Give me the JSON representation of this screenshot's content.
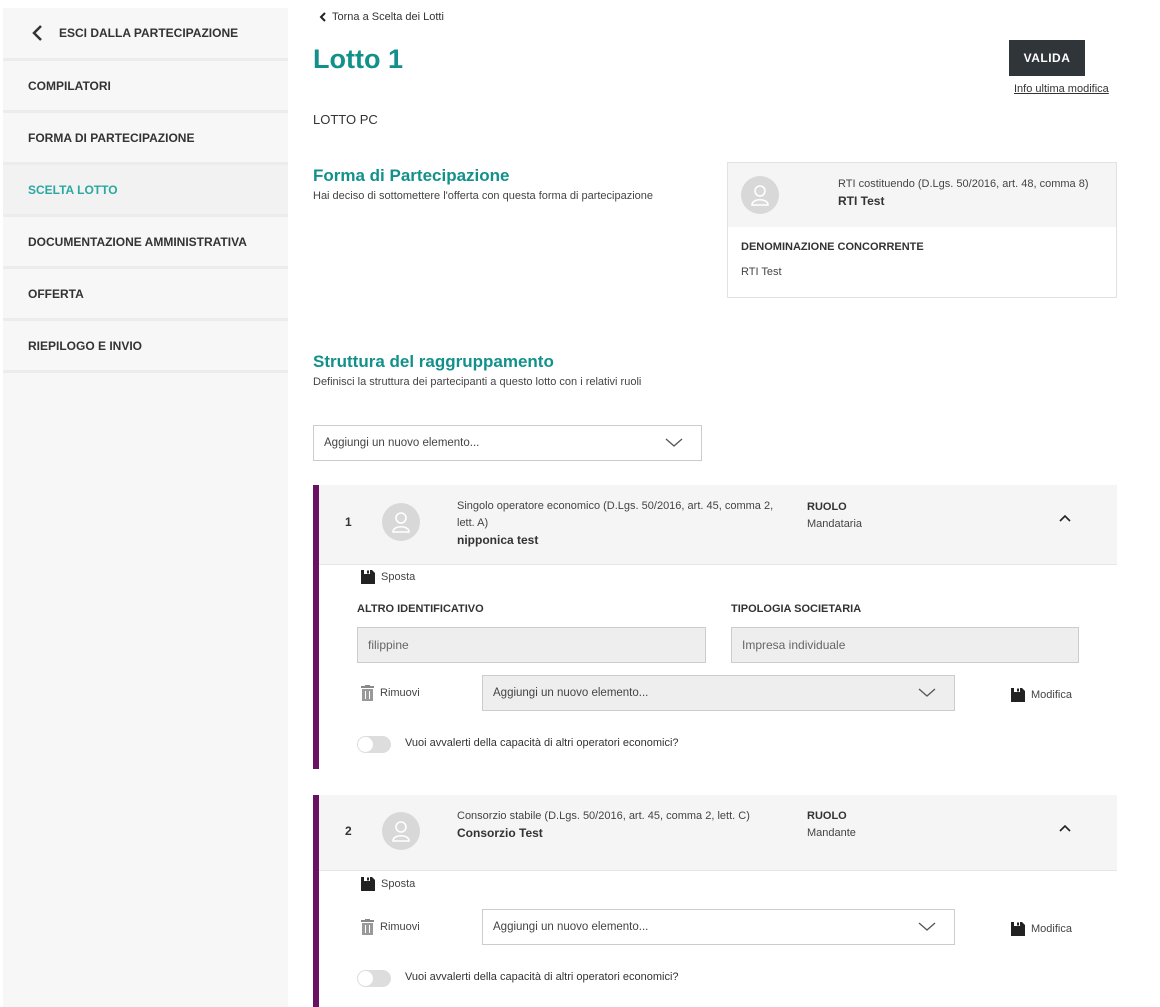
{
  "sidebar": {
    "back": "ESCI DALLA PARTECIPAZIONE",
    "items": [
      {
        "label": "COMPILATORI"
      },
      {
        "label": "FORMA DI PARTECIPAZIONE"
      },
      {
        "label": "SCELTA LOTTO",
        "active": true
      },
      {
        "label": "DOCUMENTAZIONE AMMINISTRATIVA"
      },
      {
        "label": "OFFERTA"
      },
      {
        "label": "RIEPILOGO E INVIO"
      }
    ]
  },
  "header": {
    "back_link": "Torna a Scelta dei Lotti",
    "title": "Lotto 1",
    "validate": "VALIDA",
    "info_link": "Info ultima modifica",
    "subtitle": "LOTTO PC"
  },
  "forma": {
    "title": "Forma di Partecipazione",
    "desc": "Hai deciso di sottomettere l'offerta con questa forma di partecipazione",
    "card": {
      "type": "RTI costituendo (D.Lgs. 50/2016, art. 48, comma 8)",
      "name": "RTI Test",
      "field_label": "DENOMINAZIONE CONCORRENTE",
      "field_value": "RTI Test"
    }
  },
  "struttura": {
    "title": "Struttura del raggruppamento",
    "desc": "Definisci la struttura dei partecipanti a questo lotto con i relativi ruoli",
    "add_placeholder": "Aggiungi un nuovo elemento..."
  },
  "members": [
    {
      "index": "1",
      "type": "Singolo operatore economico (D.Lgs. 50/2016, art. 45, comma 2, lett. A)",
      "name": "nipponica test",
      "role_label": "RUOLO",
      "role": "Mandataria",
      "move": "Sposta",
      "altro_label": "ALTRO IDENTIFICATIVO",
      "altro_value": "filippine",
      "tipologia_label": "TIPOLOGIA SOCIETARIA",
      "tipologia_value": "Impresa individuale",
      "remove": "Rimuovi",
      "add_placeholder": "Aggiungi un nuovo elemento...",
      "edit": "Modifica",
      "toggle_label": "Vuoi avvalerti della capacità di altri operatori economici?",
      "toggle_on": false
    },
    {
      "index": "2",
      "type": "Consorzio stabile (D.Lgs. 50/2016, art. 45, comma 2, lett. C)",
      "name": "Consorzio Test",
      "role_label": "RUOLO",
      "role": "Mandante",
      "move": "Sposta",
      "remove": "Rimuovi",
      "add_placeholder": "Aggiungi un nuovo elemento...",
      "edit": "Modifica",
      "toggle_label": "Vuoi avvalerti della capacità di altri operatori economici?",
      "toggle_on": false
    }
  ],
  "colors": {
    "accent": "#12918b",
    "member_bar": "#6b1162",
    "primary_button": "#30353a"
  }
}
